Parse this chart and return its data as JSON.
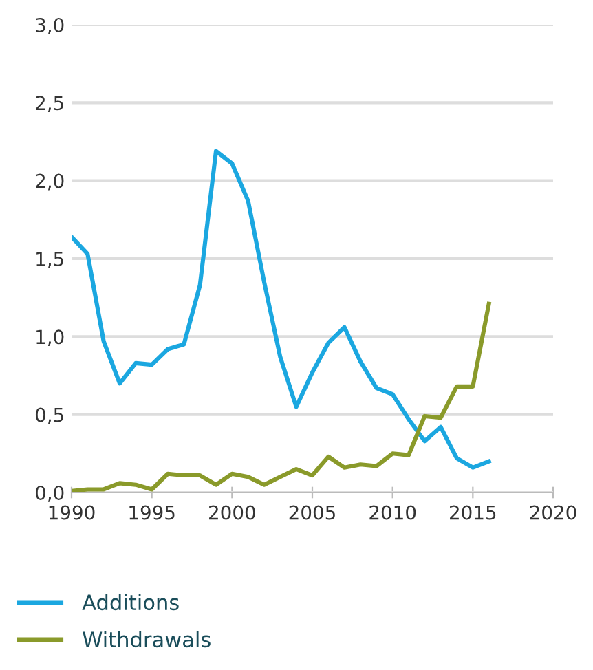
{
  "chart_data": {
    "type": "line",
    "x": [
      1990,
      1991,
      1992,
      1993,
      1994,
      1995,
      1996,
      1997,
      1998,
      1999,
      2000,
      2001,
      2002,
      2003,
      2004,
      2005,
      2006,
      2007,
      2008,
      2009,
      2010,
      2011,
      2012,
      2013,
      2014,
      2015,
      2016
    ],
    "series": [
      {
        "name": "Additions",
        "color": "#1ba7e0",
        "values": [
          1.64,
          1.53,
          0.97,
          0.7,
          0.83,
          0.82,
          0.92,
          0.95,
          1.33,
          2.19,
          2.11,
          1.87,
          1.35,
          0.87,
          0.55,
          0.77,
          0.96,
          1.06,
          0.84,
          0.67,
          0.63,
          0.47,
          0.33,
          0.42,
          0.22,
          0.16,
          0.2
        ]
      },
      {
        "name": "Withdrawals",
        "color": "#8a9a2a",
        "values": [
          0.01,
          0.02,
          0.02,
          0.06,
          0.05,
          0.02,
          0.12,
          0.11,
          0.11,
          0.05,
          0.12,
          0.1,
          0.05,
          0.1,
          0.15,
          0.11,
          0.23,
          0.16,
          0.18,
          0.17,
          0.25,
          0.24,
          0.49,
          0.48,
          0.68,
          0.68,
          1.21
        ]
      }
    ],
    "xlim": [
      1990,
      2020
    ],
    "xticks": [
      1990,
      1995,
      2000,
      2005,
      2010,
      2015,
      2020
    ],
    "ylim": [
      0,
      3
    ],
    "yticks": [
      {
        "value": 0,
        "label": "0,0"
      },
      {
        "value": 0.5,
        "label": "0,5"
      },
      {
        "value": 1,
        "label": "1,0"
      },
      {
        "value": 1.5,
        "label": "1,5"
      },
      {
        "value": 2,
        "label": "2,0"
      },
      {
        "value": 2.5,
        "label": "2,5"
      },
      {
        "value": 3,
        "label": "3,0"
      }
    ],
    "grid": "y",
    "legend": "bottom",
    "marker": "none",
    "line_style": "solid"
  }
}
